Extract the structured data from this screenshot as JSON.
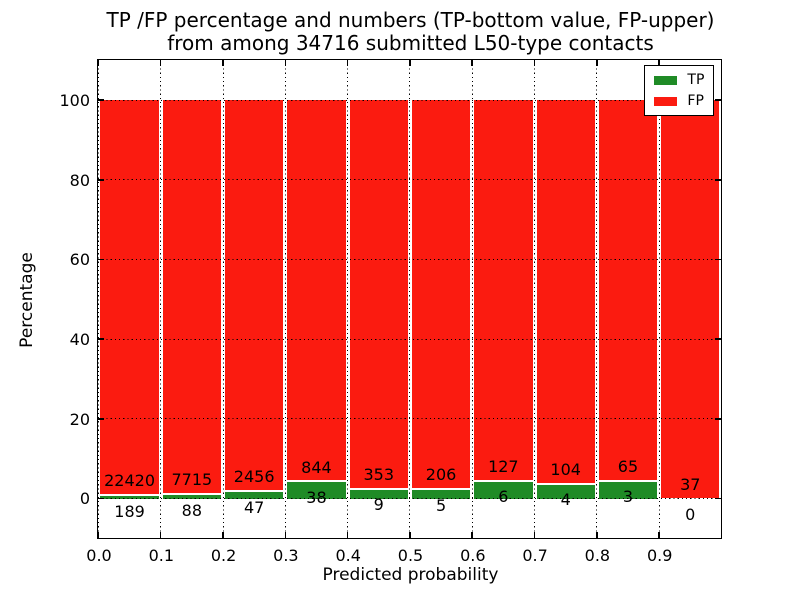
{
  "chart_data": {
    "type": "bar",
    "stacked": true,
    "title_line1": "TP /FP percentage and numbers (TP-bottom value, FP-upper)",
    "title_line2": "from among 34716 submitted L50-type contacts",
    "total_submitted": 34716,
    "xlabel": "Predicted probability",
    "ylabel": "Percentage",
    "bin_starts": [
      0.0,
      0.1,
      0.2,
      0.3,
      0.4,
      0.5,
      0.6,
      0.7,
      0.8,
      0.9
    ],
    "bin_width": 0.1,
    "series": [
      {
        "name": "TP",
        "color": "#1f8b26",
        "position": "bottom",
        "counts": [
          189,
          88,
          47,
          38,
          9,
          5,
          6,
          4,
          3,
          0
        ]
      },
      {
        "name": "FP",
        "color": "#fb1b10",
        "position": "top",
        "counts": [
          22420,
          7715,
          2456,
          844,
          353,
          206,
          127,
          104,
          65,
          37
        ]
      }
    ],
    "bar_total_percent": 100,
    "xlim": [
      0,
      1
    ],
    "ylim": [
      -10,
      110
    ],
    "yticks": [
      0,
      20,
      40,
      60,
      80,
      100
    ],
    "ytick_labels": [
      "0",
      "20",
      "40",
      "60",
      "80",
      "100"
    ],
    "xticks": [
      0.0,
      0.1,
      0.2,
      0.3,
      0.4,
      0.5,
      0.6,
      0.7,
      0.8,
      0.9
    ],
    "xtick_labels": [
      "0.0",
      "0.1",
      "0.2",
      "0.3",
      "0.4",
      "0.5",
      "0.6",
      "0.7",
      "0.8",
      "0.9"
    ],
    "grid": "dotted",
    "grid_color": "#000000",
    "legend": {
      "position": "upper right",
      "entries": [
        {
          "label": "TP",
          "color": "#1f8b26"
        },
        {
          "label": "FP",
          "color": "#fb1b10"
        }
      ]
    }
  }
}
